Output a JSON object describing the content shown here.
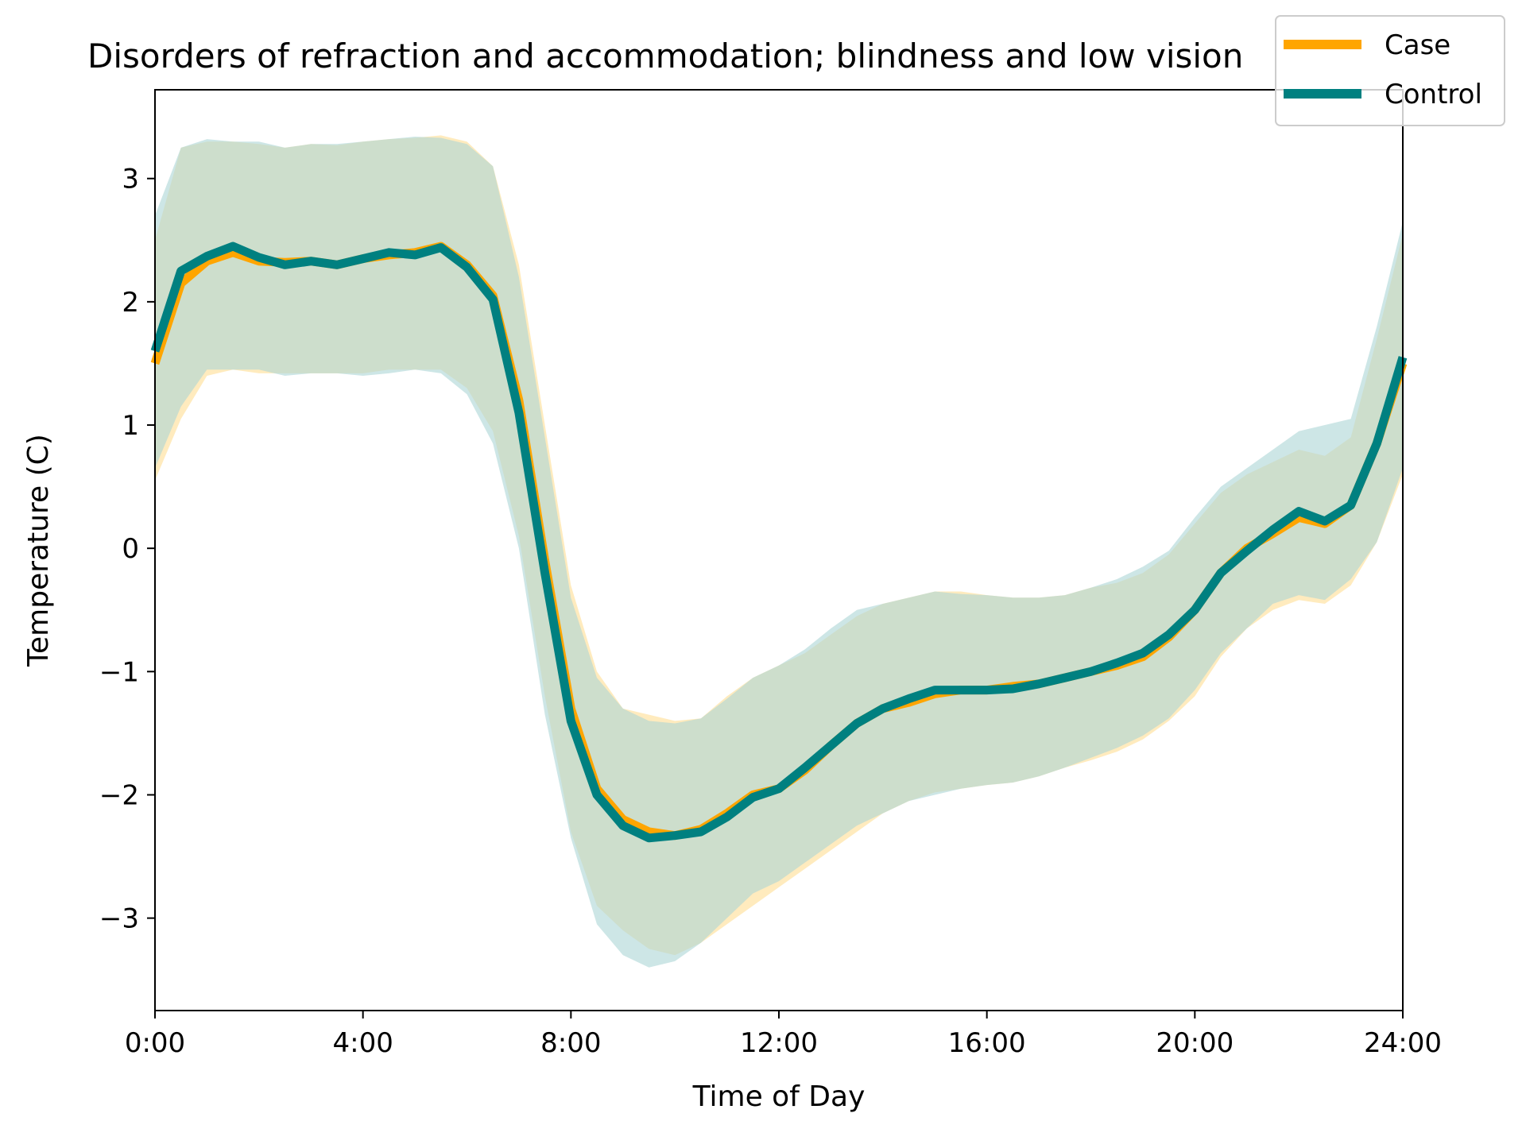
{
  "chart_data": {
    "type": "line",
    "title": "Disorders of refraction and accommodation; blindness and low vision",
    "xlabel": "Time of Day",
    "ylabel": "Temperature (C)",
    "xlim": [
      0,
      24
    ],
    "ylim": [
      -3.75,
      3.72
    ],
    "x_ticks": [
      {
        "value": 0,
        "label": "0:00"
      },
      {
        "value": 4,
        "label": "4:00"
      },
      {
        "value": 8,
        "label": "8:00"
      },
      {
        "value": 12,
        "label": "12:00"
      },
      {
        "value": 16,
        "label": "16:00"
      },
      {
        "value": 20,
        "label": "20:00"
      },
      {
        "value": 24,
        "label": "24:00"
      }
    ],
    "y_ticks": [
      {
        "value": 3,
        "label": "3"
      },
      {
        "value": 2,
        "label": "2"
      },
      {
        "value": 1,
        "label": "1"
      },
      {
        "value": 0,
        "label": "0"
      },
      {
        "value": -1,
        "label": "−1"
      },
      {
        "value": -2,
        "label": "−2"
      },
      {
        "value": -3,
        "label": "−3"
      }
    ],
    "grid": false,
    "legend_position": "top-right",
    "x": [
      0,
      0.5,
      1,
      1.5,
      2,
      2.5,
      3,
      3.5,
      4,
      4.5,
      5,
      5.5,
      6,
      6.5,
      7,
      7.5,
      8,
      8.5,
      9,
      9.5,
      10,
      10.5,
      11,
      11.5,
      12,
      12.5,
      13,
      13.5,
      14,
      14.5,
      15,
      15.5,
      16,
      16.5,
      17,
      17.5,
      18,
      18.5,
      19,
      19.5,
      20,
      20.5,
      21,
      21.5,
      22,
      22.5,
      23,
      23.5,
      24
    ],
    "series": [
      {
        "name": "Case",
        "color": "#FFA500",
        "band_color": "#FFE4A8",
        "mean": [
          1.5,
          2.15,
          2.33,
          2.4,
          2.33,
          2.32,
          2.33,
          2.3,
          2.35,
          2.38,
          2.4,
          2.45,
          2.3,
          2.05,
          1.2,
          -0.1,
          -1.3,
          -1.95,
          -2.2,
          -2.3,
          -2.33,
          -2.28,
          -2.15,
          -2.0,
          -1.95,
          -1.8,
          -1.6,
          -1.42,
          -1.3,
          -1.25,
          -1.18,
          -1.15,
          -1.15,
          -1.12,
          -1.1,
          -1.05,
          -1.0,
          -0.95,
          -0.88,
          -0.72,
          -0.5,
          -0.2,
          0.0,
          0.12,
          0.25,
          0.2,
          0.35,
          0.85,
          1.5
        ],
        "upper": [
          2.5,
          3.25,
          3.3,
          3.3,
          3.28,
          3.25,
          3.28,
          3.27,
          3.3,
          3.32,
          3.33,
          3.35,
          3.3,
          3.1,
          2.3,
          1.0,
          -0.3,
          -1.0,
          -1.3,
          -1.35,
          -1.4,
          -1.38,
          -1.2,
          -1.05,
          -0.95,
          -0.85,
          -0.7,
          -0.55,
          -0.45,
          -0.4,
          -0.35,
          -0.35,
          -0.38,
          -0.4,
          -0.4,
          -0.38,
          -0.32,
          -0.28,
          -0.2,
          -0.05,
          0.2,
          0.45,
          0.6,
          0.7,
          0.8,
          0.75,
          0.9,
          1.7,
          2.55
        ],
        "lower": [
          0.55,
          1.05,
          1.4,
          1.45,
          1.42,
          1.42,
          1.42,
          1.42,
          1.42,
          1.45,
          1.45,
          1.45,
          1.3,
          0.95,
          0.1,
          -1.2,
          -2.3,
          -2.9,
          -3.1,
          -3.25,
          -3.3,
          -3.2,
          -3.05,
          -2.9,
          -2.75,
          -2.6,
          -2.45,
          -2.3,
          -2.15,
          -2.05,
          -1.98,
          -1.95,
          -1.92,
          -1.9,
          -1.85,
          -1.78,
          -1.72,
          -1.65,
          -1.55,
          -1.4,
          -1.2,
          -0.88,
          -0.65,
          -0.5,
          -0.42,
          -0.45,
          -0.3,
          0.05,
          0.6
        ]
      },
      {
        "name": "Control",
        "color": "#008080",
        "band_color": "#ABD6D6",
        "mean": [
          1.6,
          2.25,
          2.37,
          2.45,
          2.36,
          2.3,
          2.33,
          2.3,
          2.35,
          2.4,
          2.38,
          2.44,
          2.28,
          2.02,
          1.1,
          -0.2,
          -1.4,
          -2.0,
          -2.25,
          -2.35,
          -2.33,
          -2.3,
          -2.18,
          -2.02,
          -1.95,
          -1.78,
          -1.6,
          -1.42,
          -1.3,
          -1.22,
          -1.15,
          -1.15,
          -1.15,
          -1.14,
          -1.1,
          -1.05,
          -1.0,
          -0.93,
          -0.85,
          -0.7,
          -0.5,
          -0.2,
          -0.02,
          0.15,
          0.3,
          0.22,
          0.35,
          0.85,
          1.55
        ],
        "upper": [
          2.7,
          3.25,
          3.32,
          3.3,
          3.3,
          3.25,
          3.28,
          3.28,
          3.3,
          3.32,
          3.34,
          3.33,
          3.28,
          3.1,
          2.2,
          0.9,
          -0.4,
          -1.05,
          -1.3,
          -1.4,
          -1.42,
          -1.38,
          -1.22,
          -1.05,
          -0.95,
          -0.82,
          -0.65,
          -0.5,
          -0.45,
          -0.4,
          -0.35,
          -0.37,
          -0.38,
          -0.4,
          -0.4,
          -0.38,
          -0.32,
          -0.25,
          -0.15,
          -0.02,
          0.25,
          0.5,
          0.65,
          0.8,
          0.95,
          1.0,
          1.05,
          1.8,
          2.65
        ],
        "lower": [
          0.65,
          1.15,
          1.45,
          1.45,
          1.45,
          1.4,
          1.42,
          1.42,
          1.4,
          1.42,
          1.45,
          1.42,
          1.25,
          0.85,
          0.0,
          -1.35,
          -2.35,
          -3.05,
          -3.3,
          -3.4,
          -3.35,
          -3.2,
          -3.0,
          -2.8,
          -2.7,
          -2.55,
          -2.4,
          -2.25,
          -2.15,
          -2.05,
          -2.0,
          -1.95,
          -1.92,
          -1.9,
          -1.85,
          -1.78,
          -1.7,
          -1.62,
          -1.52,
          -1.38,
          -1.15,
          -0.85,
          -0.65,
          -0.45,
          -0.38,
          -0.42,
          -0.25,
          0.05,
          0.65
        ]
      }
    ]
  }
}
